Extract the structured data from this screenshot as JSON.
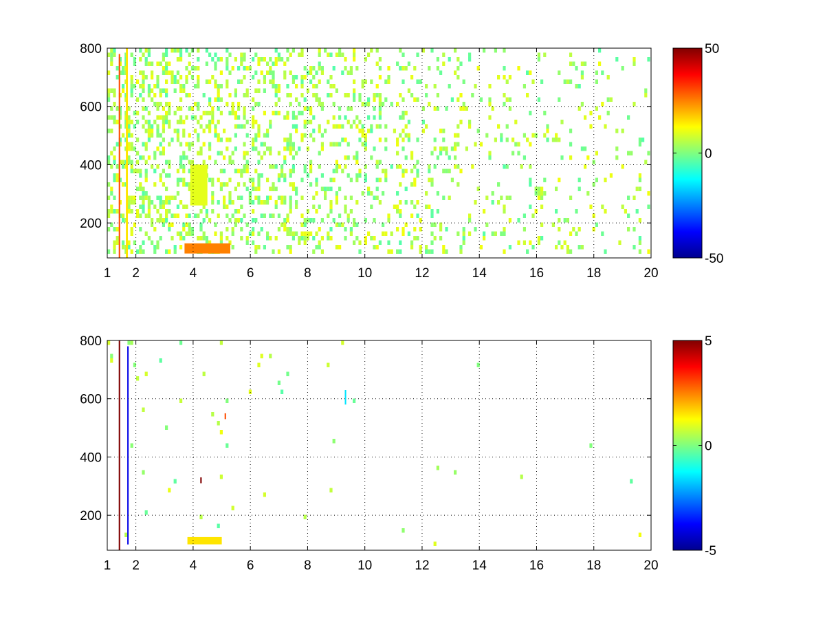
{
  "chart_data": [
    {
      "type": "heatmap",
      "title": "",
      "xlabel": "",
      "ylabel": "",
      "xlim": [
        1,
        20
      ],
      "ylim": [
        80,
        800
      ],
      "xticks": [
        1,
        2,
        4,
        6,
        8,
        10,
        12,
        14,
        16,
        18,
        20
      ],
      "xtick_labels": [
        "1",
        "2",
        "4",
        "6",
        "8",
        "10",
        "12",
        "14",
        "16",
        "18",
        "20"
      ],
      "yticks": [
        200,
        400,
        600,
        800
      ],
      "ytick_labels": [
        "200",
        "400",
        "600",
        "800"
      ],
      "grid": true,
      "colormap": "jet",
      "clim": [
        -50,
        50
      ],
      "colorbar_ticks": [
        -50,
        0,
        50
      ],
      "colorbar_labels": [
        "-50",
        "0",
        "50"
      ],
      "features": [
        {
          "x": [
            1.4,
            1.45
          ],
          "y": [
            80,
            780
          ],
          "value": 30
        },
        {
          "x": [
            1.65,
            1.72
          ],
          "y": [
            80,
            800
          ],
          "value": 15
        },
        {
          "x": [
            3.7,
            5.3
          ],
          "y": [
            95,
            130
          ],
          "value": 25
        },
        {
          "x": [
            3.9,
            4.5
          ],
          "y": [
            260,
            400
          ],
          "value": 10
        }
      ],
      "cell_density": 0.3
    },
    {
      "type": "heatmap",
      "title": "",
      "xlabel": "",
      "ylabel": "",
      "xlim": [
        1,
        20
      ],
      "ylim": [
        80,
        800
      ],
      "xticks": [
        1,
        2,
        4,
        6,
        8,
        10,
        12,
        14,
        16,
        18,
        20
      ],
      "xtick_labels": [
        "1",
        "2",
        "4",
        "6",
        "8",
        "10",
        "12",
        "14",
        "16",
        "18",
        "20"
      ],
      "yticks": [
        200,
        400,
        600,
        800
      ],
      "ytick_labels": [
        "200",
        "400",
        "600",
        "800"
      ],
      "grid": true,
      "colormap": "jet",
      "clim": [
        -5,
        5
      ],
      "colorbar_ticks": [
        -5,
        0,
        5
      ],
      "colorbar_labels": [
        "-5",
        "0",
        "5"
      ],
      "features": [
        {
          "x": [
            1.4,
            1.45
          ],
          "y": [
            80,
            800
          ],
          "value": 5
        },
        {
          "x": [
            1.7,
            1.72
          ],
          "y": [
            100,
            780
          ],
          "value": -4
        },
        {
          "x": [
            3.8,
            5.0
          ],
          "y": [
            100,
            125
          ],
          "value": 1.5
        },
        {
          "x": [
            5.1,
            5.15
          ],
          "y": [
            530,
            550
          ],
          "value": 3
        },
        {
          "x": [
            4.25,
            4.3
          ],
          "y": [
            310,
            330
          ],
          "value": 5
        },
        {
          "x": [
            9.3,
            9.35
          ],
          "y": [
            580,
            630
          ],
          "value": -1.5
        }
      ],
      "cell_density": 0.01
    }
  ]
}
